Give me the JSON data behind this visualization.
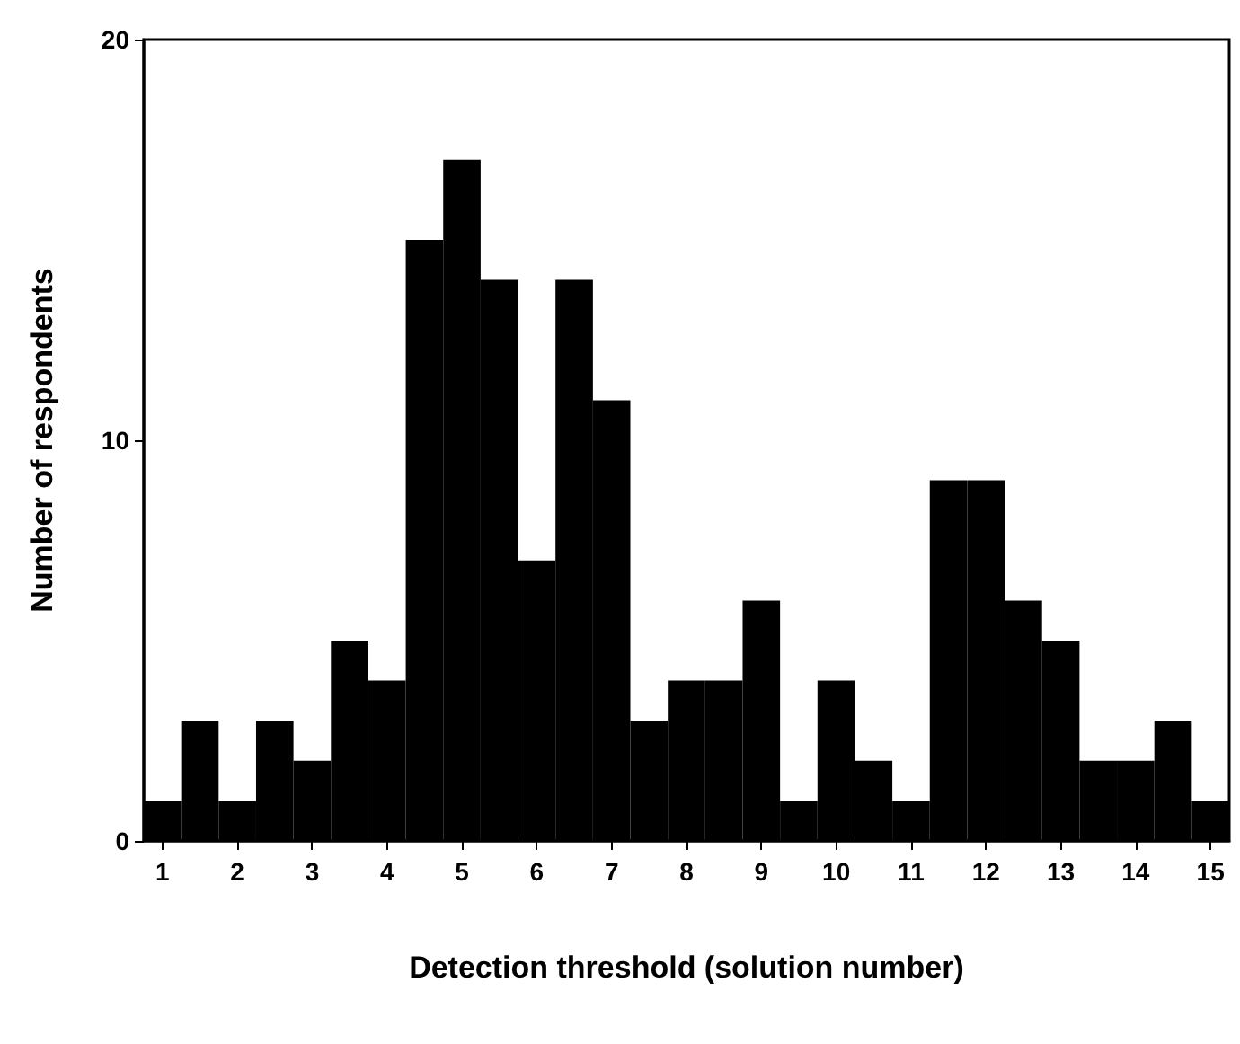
{
  "chart_data": {
    "type": "histogram",
    "xlabel": "Detection threshold (solution number)",
    "ylabel": "Number of respondents",
    "bins": [
      0.75,
      1.25,
      1.75,
      2.25,
      2.75,
      3.25,
      3.75,
      4.25,
      4.75,
      5.25,
      5.75,
      6.25,
      6.75,
      7.25,
      7.75,
      8.25,
      8.75,
      9.25,
      9.75,
      10.25,
      10.75,
      11.25,
      11.75,
      12.25,
      12.75,
      13.25,
      13.75,
      14.25,
      14.75,
      15.25
    ],
    "values": [
      1,
      3,
      1,
      3,
      2,
      5,
      4,
      15,
      17,
      14,
      7,
      14,
      11,
      3,
      4,
      4,
      6,
      1,
      4,
      2,
      1,
      9,
      9,
      6,
      5,
      2,
      2,
      3,
      1
    ],
    "color": "#000000",
    "xlim": [
      0.75,
      15.25
    ],
    "xticks": [
      1,
      2,
      3,
      4,
      5,
      6,
      7,
      8,
      9,
      10,
      11,
      12,
      13,
      14,
      15
    ],
    "ylim": [
      0,
      20
    ],
    "yticks": [
      0,
      10,
      20
    ],
    "grid": false
  }
}
